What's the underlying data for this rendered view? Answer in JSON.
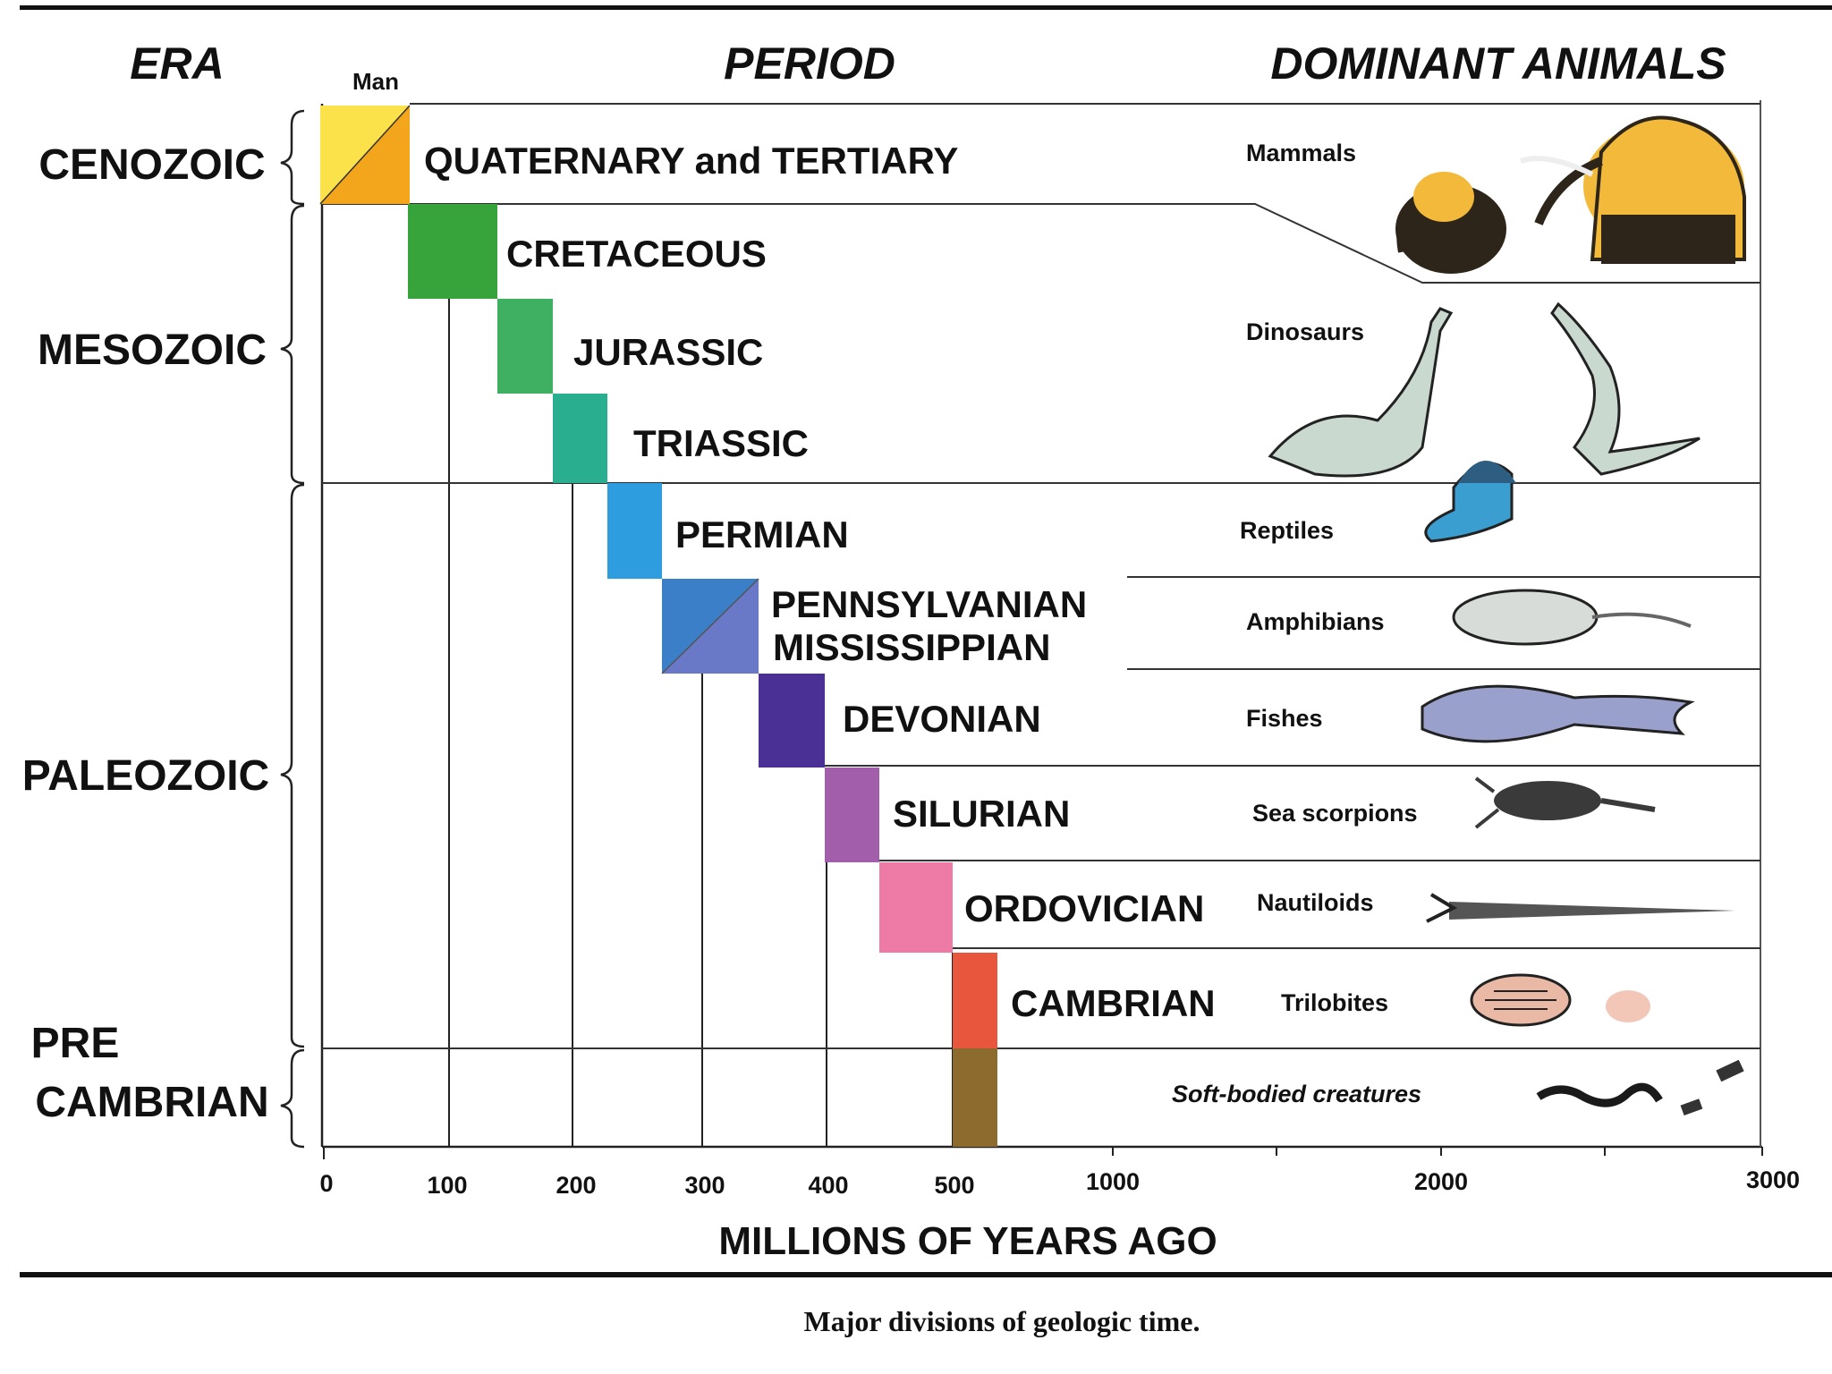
{
  "headers": {
    "era": "ERA",
    "period": "PERIOD",
    "animals": "DOMINANT ANIMALS"
  },
  "man_label": "Man",
  "eras": [
    {
      "id": "cenozoic",
      "lines": [
        "CENOZOIC"
      ]
    },
    {
      "id": "mesozoic",
      "lines": [
        "MESOZOIC"
      ]
    },
    {
      "id": "paleozoic",
      "lines": [
        "PALEOZOIC"
      ]
    },
    {
      "id": "precambrian",
      "lines": [
        "PRE",
        "CAMBRIAN"
      ]
    }
  ],
  "chart_data": {
    "type": "diagram",
    "x_axis": {
      "label": "MILLIONS OF YEARS AGO",
      "ticks": [
        "0",
        "100",
        "200",
        "300",
        "400",
        "500",
        "1000",
        "2000",
        "3000"
      ]
    },
    "periods": [
      {
        "name": "QUATERNARY and TERTIARY",
        "start_mya": 0,
        "end_mya": 70,
        "color": "#f5b521",
        "animal": "Mammals"
      },
      {
        "name": "CRETACEOUS",
        "start_mya": 70,
        "end_mya": 135,
        "color": "#36a43a",
        "animal": ""
      },
      {
        "name": "JURASSIC",
        "start_mya": 135,
        "end_mya": 180,
        "color": "#3fb062",
        "animal": "Dinosaurs"
      },
      {
        "name": "TRIASSIC",
        "start_mya": 180,
        "end_mya": 225,
        "color": "#2aae90",
        "animal": ""
      },
      {
        "name": "PERMIAN",
        "start_mya": 225,
        "end_mya": 270,
        "color": "#2d9de0",
        "animal": "Reptiles"
      },
      {
        "name": "PENNSYLVANIAN",
        "start_mya": 270,
        "end_mya": 350,
        "color": "#3a7fc8",
        "animal": "Amphibians"
      },
      {
        "name": "MISSISSIPPIAN",
        "start_mya": 270,
        "end_mya": 350,
        "color": "#6a78c8",
        "animal": ""
      },
      {
        "name": "DEVONIAN",
        "start_mya": 350,
        "end_mya": 400,
        "color": "#4a2f95",
        "animal": "Fishes"
      },
      {
        "name": "SILURIAN",
        "start_mya": 400,
        "end_mya": 440,
        "color": "#a25eaa",
        "animal": "Sea scorpions"
      },
      {
        "name": "ORDOVICIAN",
        "start_mya": 440,
        "end_mya": 500,
        "color": "#ee7aa6",
        "animal": "Nautiloids"
      },
      {
        "name": "CAMBRIAN",
        "start_mya": 500,
        "end_mya": 600,
        "color": "#e8563e",
        "animal": "Trilobites"
      },
      {
        "name": "",
        "start_mya": 600,
        "end_mya": 4500,
        "color": "#8d6a2e",
        "animal": "Soft-bodied creatures"
      }
    ]
  },
  "caption": "Major divisions of geologic time."
}
